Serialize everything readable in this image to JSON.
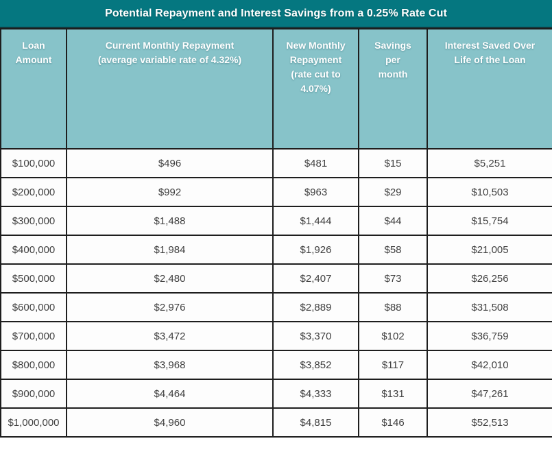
{
  "title": "Potential Repayment and Interest Savings from a 0.25% Rate Cut",
  "colors": {
    "title_bar_bg": "#057780",
    "header_bg": "#87c3c9",
    "header_text": "#ffffff",
    "cell_text": "#404040",
    "border": "#1e1e1e",
    "row_bg": "#fdfdfd"
  },
  "chart_data": {
    "type": "table",
    "title": "Potential Repayment and Interest Savings from a 0.25% Rate Cut",
    "columns": [
      "Loan\nAmount",
      "Current Monthly Repayment\n(average variable rate of 4.32%)",
      "New Monthly\nRepayment\n(rate cut to\n4.07%)",
      "Savings\nper\nmonth",
      "Interest Saved Over\nLife of the Loan"
    ],
    "columns_plain": [
      "Loan Amount",
      "Current Monthly Repayment (average variable rate of 4.32%)",
      "New Monthly Repayment (rate cut to 4.07%)",
      "Savings per month",
      "Interest Saved Over Life of the Loan"
    ],
    "rows": [
      [
        "$100,000",
        "$496",
        "$481",
        "$15",
        "$5,251"
      ],
      [
        "$200,000",
        "$992",
        "$963",
        "$29",
        "$10,503"
      ],
      [
        "$300,000",
        "$1,488",
        "$1,444",
        "$44",
        "$15,754"
      ],
      [
        "$400,000",
        "$1,984",
        "$1,926",
        "$58",
        "$21,005"
      ],
      [
        "$500,000",
        "$2,480",
        "$2,407",
        "$73",
        "$26,256"
      ],
      [
        "$600,000",
        "$2,976",
        "$2,889",
        "$88",
        "$31,508"
      ],
      [
        "$700,000",
        "$3,472",
        "$3,370",
        "$102",
        "$36,759"
      ],
      [
        "$800,000",
        "$3,968",
        "$3,852",
        "$117",
        "$42,010"
      ],
      [
        "$900,000",
        "$4,464",
        "$4,333",
        "$131",
        "$47,261"
      ],
      [
        "$1,000,000",
        "$4,960",
        "$4,815",
        "$146",
        "$52,513"
      ]
    ]
  }
}
